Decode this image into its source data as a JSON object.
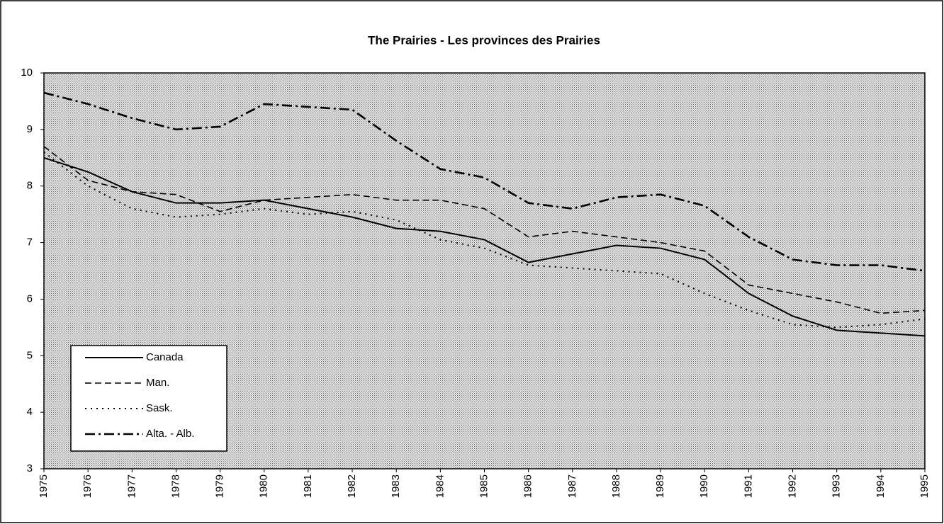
{
  "chart_data": {
    "type": "line",
    "title": "The Prairies - Les provinces des Prairies",
    "categories": [
      "1975",
      "1976",
      "1977",
      "1978",
      "1979",
      "1980",
      "1981",
      "1982",
      "1983",
      "1984",
      "1985",
      "1986",
      "1987",
      "1988",
      "1989",
      "1990",
      "1991",
      "1992",
      "1993",
      "1994",
      "1995"
    ],
    "series": [
      {
        "name": "Canada",
        "color": "#000000",
        "dash": "solid",
        "values": [
          8.5,
          8.25,
          7.9,
          7.7,
          7.7,
          7.75,
          7.6,
          7.45,
          7.25,
          7.2,
          7.05,
          6.65,
          6.8,
          6.95,
          6.9,
          6.7,
          6.1,
          5.7,
          5.45,
          5.4,
          5.35
        ]
      },
      {
        "name": "Man.",
        "color": "#000000",
        "dash": "dashed",
        "values": [
          8.7,
          8.1,
          7.9,
          7.85,
          7.55,
          7.75,
          7.8,
          7.85,
          7.75,
          7.75,
          7.6,
          7.1,
          7.2,
          7.1,
          7.0,
          6.85,
          6.25,
          6.1,
          5.95,
          5.75,
          5.8
        ]
      },
      {
        "name": "Sask.",
        "color": "#000000",
        "dash": "dotted",
        "values": [
          8.6,
          8.0,
          7.6,
          7.45,
          7.5,
          7.6,
          7.5,
          7.55,
          7.4,
          7.05,
          6.9,
          6.6,
          6.55,
          6.5,
          6.45,
          6.1,
          5.8,
          5.55,
          5.5,
          5.55,
          5.65
        ]
      },
      {
        "name": "Alta. - Alb.",
        "color": "#000000",
        "dash": "dashdot",
        "values": [
          9.65,
          9.45,
          9.2,
          9.0,
          9.05,
          9.45,
          9.4,
          9.35,
          8.8,
          8.3,
          8.15,
          7.7,
          7.6,
          7.8,
          7.85,
          7.65,
          7.1,
          6.7,
          6.6,
          6.6,
          6.5
        ]
      }
    ],
    "ylim": [
      3,
      10
    ],
    "yticks": [
      3,
      4,
      5,
      6,
      7,
      8,
      9,
      10
    ],
    "legend": "lower left"
  }
}
